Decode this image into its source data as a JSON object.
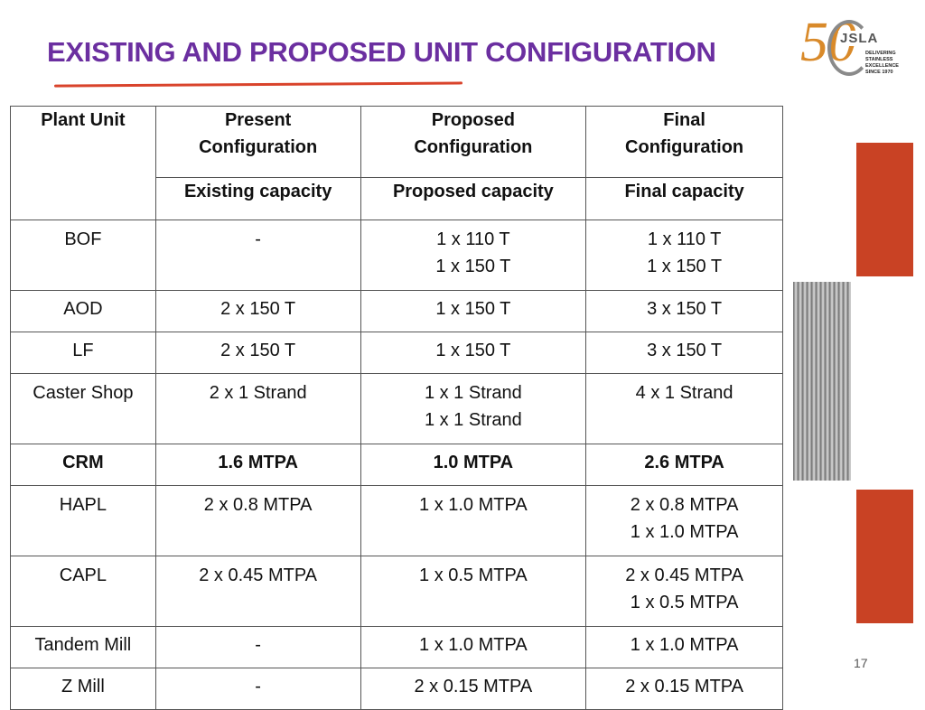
{
  "slide": {
    "title": "EXISTING AND PROPOSED UNIT CONFIGURATION",
    "page_number": "17",
    "accent_color": "#d9432b",
    "title_color": "#6b2fa0",
    "logo": {
      "numeral": "50",
      "brand": "JSLA",
      "tagline_1": "DELIVERING",
      "tagline_2": "STAINLESS EXCELLENCE",
      "tagline_3": "SINCE 1970"
    }
  },
  "table": {
    "headers": {
      "plant_unit": "Plant Unit",
      "present": [
        "Present",
        "Configuration"
      ],
      "proposed": [
        "Proposed",
        "Configuration"
      ],
      "final": [
        "Final",
        "Configuration"
      ],
      "existing_capacity": "Existing capacity",
      "proposed_capacity": "Proposed capacity",
      "final_capacity": "Final capacity"
    },
    "rows": [
      {
        "unit": "BOF",
        "existing": [
          "-"
        ],
        "proposed": [
          "1 x 110 T",
          "1 x 150 T"
        ],
        "final": [
          "1 x 110 T",
          "1 x 150 T"
        ],
        "bold": false
      },
      {
        "unit": "AOD",
        "existing": [
          "2 x 150 T"
        ],
        "proposed": [
          "1 x 150 T"
        ],
        "final": [
          "3 x 150 T"
        ],
        "bold": false
      },
      {
        "unit": "LF",
        "existing": [
          "2 x 150 T"
        ],
        "proposed": [
          "1 x 150 T"
        ],
        "final": [
          "3 x 150 T"
        ],
        "bold": false
      },
      {
        "unit": "Caster Shop",
        "existing": [
          "2 x 1 Strand"
        ],
        "proposed": [
          "1 x 1 Strand",
          "1 x 1 Strand"
        ],
        "final": [
          "4 x 1 Strand"
        ],
        "bold": false
      },
      {
        "unit": "CRM",
        "existing": [
          "1.6 MTPA"
        ],
        "proposed": [
          "1.0 MTPA"
        ],
        "final": [
          "2.6 MTPA"
        ],
        "bold": true
      },
      {
        "unit": "HAPL",
        "existing": [
          "2 x 0.8 MTPA"
        ],
        "proposed": [
          "1 x 1.0 MTPA"
        ],
        "final": [
          "2 x 0.8 MTPA",
          "1 x 1.0 MTPA"
        ],
        "bold": false
      },
      {
        "unit": "CAPL",
        "existing": [
          "2 x 0.45 MTPA"
        ],
        "proposed": [
          "1 x 0.5 MTPA"
        ],
        "final": [
          "2 x 0.45 MTPA",
          "1 x 0.5 MTPA"
        ],
        "bold": false
      },
      {
        "unit": "Tandem Mill",
        "existing": [
          "-"
        ],
        "proposed": [
          "1 x 1.0 MTPA"
        ],
        "final": [
          "1 x 1.0 MTPA"
        ],
        "bold": false
      },
      {
        "unit": "Z Mill",
        "existing": [
          "-"
        ],
        "proposed": [
          "2 x 0.15 MTPA"
        ],
        "final": [
          "2 x 0.15 MTPA"
        ],
        "bold": false
      }
    ]
  }
}
